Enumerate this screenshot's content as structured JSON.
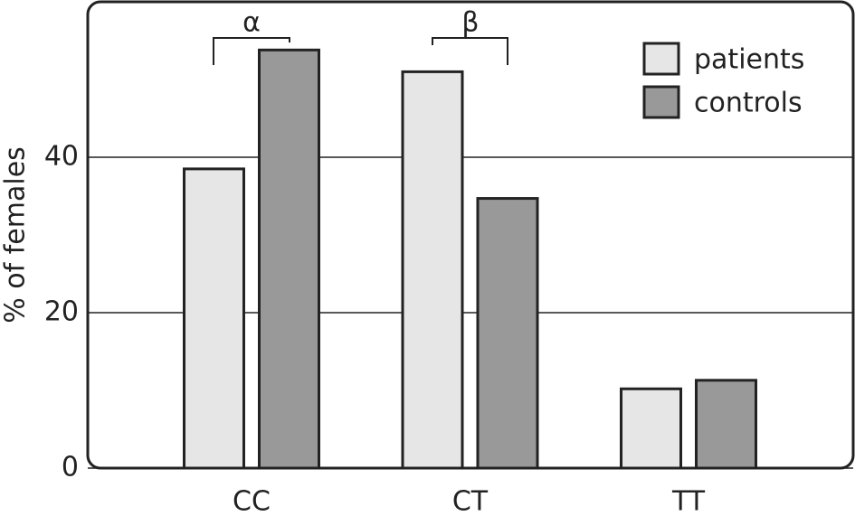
{
  "chart_data": {
    "type": "bar",
    "y_label": "% of females",
    "categories": [
      "CC",
      "CT",
      "TT"
    ],
    "series": [
      {
        "name": "patients",
        "color": "#e6e6e6",
        "values": [
          38.5,
          51.0,
          10.2
        ]
      },
      {
        "name": "controls",
        "color": "#999999",
        "values": [
          53.8,
          34.7,
          11.3
        ]
      }
    ],
    "ylim": [
      0,
      60
    ],
    "yticks": [
      0,
      20,
      40
    ],
    "grid": true,
    "legend": "top-right",
    "annotations": [
      "α",
      "β"
    ]
  }
}
